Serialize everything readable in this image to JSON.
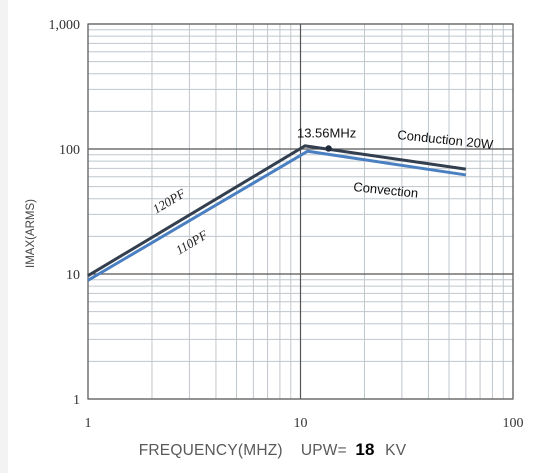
{
  "chart_data": {
    "type": "line",
    "x_scale": "log",
    "y_scale": "log",
    "xlim": [
      1,
      100
    ],
    "ylim": [
      1,
      1000
    ],
    "grid": true,
    "x_ticks": [
      "1",
      "10",
      "100"
    ],
    "y_ticks": [
      "1",
      "10",
      "100",
      "1,000"
    ],
    "xlabel": "FREQUENCY(MHZ)",
    "ylabel": "IMAX(ARMS)",
    "upw_label": "UPW=",
    "upw_value": "18",
    "upw_unit": "KV",
    "series": [
      {
        "name": "Conduction 20W",
        "segment_labels": [
          "120PF"
        ],
        "color": "#333f4f",
        "x": [
          1,
          10.5,
          60
        ],
        "y": [
          9.7,
          106,
          69
        ]
      },
      {
        "name": "Convection",
        "segment_labels": [
          "110PF"
        ],
        "color": "#4a7fc1",
        "x": [
          1,
          10.8,
          60
        ],
        "y": [
          8.9,
          96,
          62
        ]
      }
    ],
    "annotations": [
      {
        "text": "13.56MHz",
        "x": 13.56,
        "y": 101
      }
    ],
    "marker": {
      "x": 13.56,
      "y": 101
    }
  }
}
